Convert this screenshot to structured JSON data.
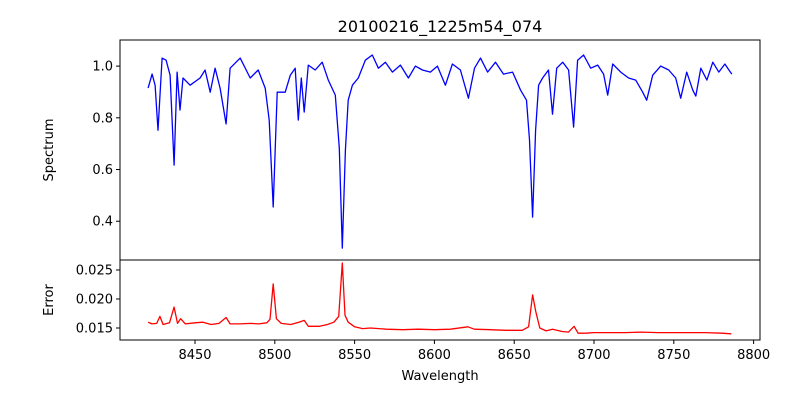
{
  "chart_data": [
    {
      "type": "line",
      "title": "20100216_1225m54_074",
      "xlabel": "",
      "ylabel": "Spectrum",
      "xlim": [
        8403,
        8804
      ],
      "ylim": [
        0.25,
        1.101
      ],
      "yticks": [
        0.4,
        0.6,
        0.8,
        1.0
      ],
      "ytick_labels": [
        "0.4",
        "0.6",
        "0.8",
        "1.0"
      ],
      "grid": false,
      "series": [
        {
          "name": "Spectrum",
          "color": "#0000ff",
          "x": [
            8420.6,
            8423.1,
            8425.0,
            8426.8,
            8429.4,
            8431.9,
            8434.4,
            8436.9,
            8438.8,
            8440.6,
            8442.5,
            8446.9,
            8453.2,
            8456.3,
            8459.5,
            8462.6,
            8465.7,
            8469.5,
            8472.0,
            8478.3,
            8484.6,
            8489.6,
            8494.0,
            8496.5,
            8499.0,
            8501.5,
            8506.5,
            8509.7,
            8512.8,
            8514.7,
            8516.6,
            8518.4,
            8521.0,
            8525.3,
            8529.7,
            8533.5,
            8537.9,
            8540.4,
            8542.3,
            8544.2,
            8546.0,
            8548.6,
            8552.3,
            8556.7,
            8561.1,
            8564.9,
            8569.3,
            8573.7,
            8578.7,
            8583.7,
            8588.1,
            8592.5,
            8597.5,
            8601.9,
            8606.9,
            8611.3,
            8616.3,
            8621.3,
            8625.1,
            8628.9,
            8633.3,
            8638.3,
            8643.3,
            8649.0,
            8654.0,
            8657.7,
            8659.6,
            8661.5,
            8663.4,
            8665.3,
            8667.8,
            8671.5,
            8674.0,
            8676.6,
            8680.4,
            8684.1,
            8687.2,
            8689.7,
            8693.5,
            8697.9,
            8702.3,
            8706.0,
            8708.6,
            8711.7,
            8716.7,
            8721.7,
            8726.1,
            8730.5,
            8733.0,
            8736.8,
            8741.8,
            8746.8,
            8751.2,
            8754.3,
            8758.1,
            8761.9,
            8763.8,
            8766.9,
            8770.7,
            8774.4,
            8778.2,
            8782.0,
            8784.5,
            8786.3
          ],
          "y": [
            0.915,
            0.969,
            0.926,
            0.752,
            1.031,
            1.023,
            0.965,
            0.617,
            0.977,
            0.83,
            0.954,
            0.926,
            0.954,
            0.985,
            0.899,
            0.992,
            0.915,
            0.776,
            0.992,
            1.031,
            0.954,
            0.985,
            0.915,
            0.791,
            0.455,
            0.899,
            0.899,
            0.965,
            0.992,
            0.791,
            0.954,
            0.822,
            1.004,
            0.985,
            1.015,
            0.946,
            0.888,
            0.683,
            0.296,
            0.675,
            0.868,
            0.926,
            0.954,
            1.023,
            1.043,
            0.992,
            1.015,
            0.977,
            1.004,
            0.954,
            1.0,
            0.985,
            0.977,
            1.0,
            0.926,
            1.008,
            0.985,
            0.876,
            0.992,
            1.031,
            0.977,
            1.015,
            0.969,
            0.977,
            0.907,
            0.868,
            0.714,
            0.416,
            0.752,
            0.926,
            0.954,
            0.985,
            0.814,
            0.992,
            1.015,
            0.985,
            0.764,
            1.023,
            1.043,
            0.992,
            1.004,
            0.969,
            0.888,
            1.008,
            0.977,
            0.954,
            0.946,
            0.899,
            0.868,
            0.965,
            1.0,
            0.985,
            0.954,
            0.876,
            0.977,
            0.907,
            0.884,
            0.992,
            0.946,
            1.015,
            0.977,
            1.008,
            0.985,
            0.969
          ]
        }
      ]
    },
    {
      "type": "line",
      "title": "",
      "xlabel": "Wavelength",
      "ylabel": "Error",
      "xlim": [
        8403,
        8804
      ],
      "ylim": [
        0.01293,
        0.02672
      ],
      "xticks": [
        8450,
        8500,
        8550,
        8600,
        8650,
        8700,
        8750,
        8800
      ],
      "xtick_labels": [
        "8450",
        "8500",
        "8550",
        "8600",
        "8650",
        "8700",
        "8750",
        "8800"
      ],
      "yticks": [
        0.015,
        0.02,
        0.025
      ],
      "ytick_labels": [
        "0.015",
        "0.020",
        "0.025"
      ],
      "grid": false,
      "series": [
        {
          "name": "Error",
          "color": "#ff0000",
          "x": [
            8420.6,
            8423,
            8426,
            8428,
            8430,
            8434,
            8436.9,
            8439,
            8441,
            8444,
            8450,
            8455,
            8460,
            8465,
            8469.5,
            8472,
            8478,
            8485,
            8490,
            8495,
            8497,
            8499,
            8501,
            8504,
            8510,
            8515,
            8518.4,
            8521,
            8528,
            8533,
            8537,
            8540,
            8542.3,
            8544,
            8546,
            8550,
            8555,
            8560,
            8570,
            8580,
            8590,
            8600,
            8610,
            8621,
            8625,
            8635,
            8645,
            8655,
            8659,
            8661.5,
            8663.5,
            8666,
            8670,
            8674,
            8680,
            8684,
            8687.5,
            8690,
            8695,
            8700,
            8710,
            8720,
            8730,
            8740,
            8750,
            8760,
            8770,
            8780,
            8786
          ],
          "y": [
            0.016,
            0.0157,
            0.0158,
            0.017,
            0.0156,
            0.0159,
            0.0186,
            0.0158,
            0.0166,
            0.0157,
            0.0159,
            0.016,
            0.0156,
            0.0158,
            0.0168,
            0.0157,
            0.0157,
            0.0158,
            0.0157,
            0.0159,
            0.0165,
            0.0226,
            0.0166,
            0.0158,
            0.0156,
            0.016,
            0.0163,
            0.0153,
            0.0153,
            0.0156,
            0.016,
            0.017,
            0.0262,
            0.0172,
            0.016,
            0.0152,
            0.0149,
            0.015,
            0.0148,
            0.0147,
            0.0148,
            0.0147,
            0.0148,
            0.0152,
            0.0148,
            0.0147,
            0.0146,
            0.0146,
            0.0152,
            0.0207,
            0.0178,
            0.015,
            0.0145,
            0.0148,
            0.0144,
            0.0143,
            0.0153,
            0.0141,
            0.0141,
            0.0142,
            0.0142,
            0.0142,
            0.0143,
            0.0142,
            0.0142,
            0.0142,
            0.0142,
            0.0141,
            0.014
          ]
        }
      ]
    }
  ]
}
